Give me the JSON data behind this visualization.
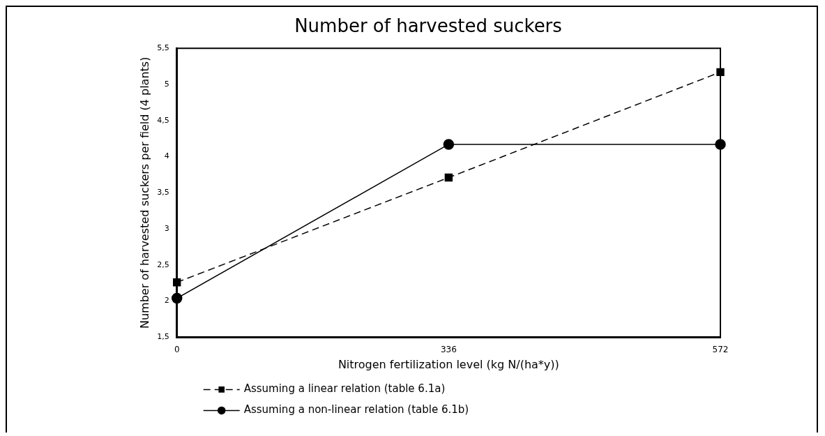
{
  "chart_data": {
    "type": "line",
    "title": "Number of harvested suckers",
    "xlabel": "Nitrogen fertilization level (kg N/(ha*y))",
    "ylabel": "Number of harvested suckers per field (4 plants)",
    "categories": [
      "0",
      "336",
      "572"
    ],
    "series": [
      {
        "name": "Assuming a linear relation (table 6.1a)",
        "color": "#000000",
        "marker": "square",
        "line_style": "dashed",
        "values": [
          2.26,
          3.71,
          5.17
        ]
      },
      {
        "name": "Assuming a non-linear relation (table 6.1b)",
        "color": "#000000",
        "marker": "circle",
        "line_style": "solid",
        "values": [
          2.04,
          4.17,
          4.17
        ]
      }
    ],
    "ylim": [
      1.5,
      5.5
    ],
    "yticks": [
      {
        "value": 1.5,
        "label": "1,5"
      },
      2,
      {
        "value": 2.5,
        "label": "2,5"
      },
      3,
      {
        "value": 3.5,
        "label": "3,5"
      },
      4,
      {
        "value": 4.5,
        "label": "4,5"
      },
      5,
      {
        "value": 5.5,
        "label": "5,5"
      }
    ],
    "grid": false,
    "legend": "bottom left"
  }
}
